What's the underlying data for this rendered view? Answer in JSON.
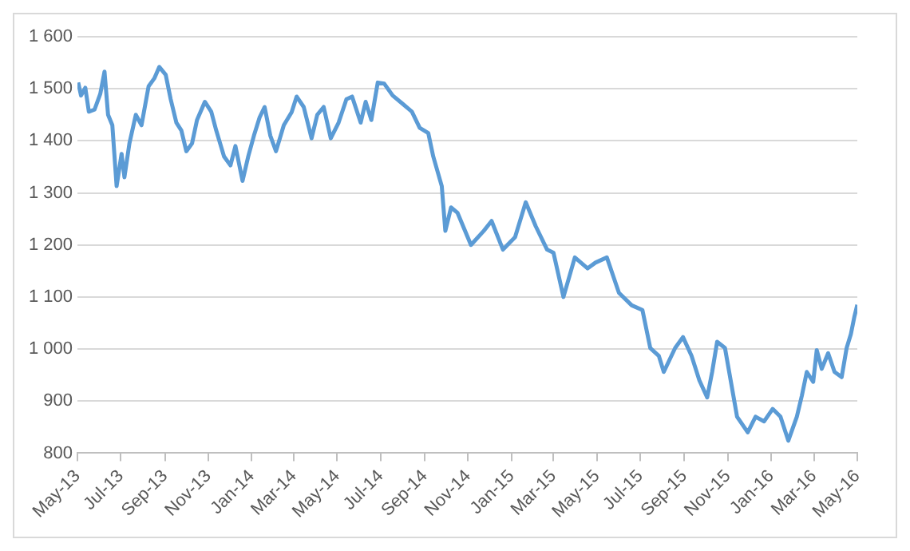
{
  "chart_data": {
    "type": "line",
    "xlim": [
      "2013-05",
      "2016-05"
    ],
    "xticks": [
      {
        "value": "2013-05",
        "label": "May-13"
      },
      {
        "value": "2013-07",
        "label": "Jul-13"
      },
      {
        "value": "2013-09",
        "label": "Sep-13"
      },
      {
        "value": "2013-11",
        "label": "Nov-13"
      },
      {
        "value": "2014-01",
        "label": "Jan-14"
      },
      {
        "value": "2014-03",
        "label": "Mar-14"
      },
      {
        "value": "2014-05",
        "label": "May-14"
      },
      {
        "value": "2014-07",
        "label": "Jul-14"
      },
      {
        "value": "2014-09",
        "label": "Sep-14"
      },
      {
        "value": "2014-11",
        "label": "Nov-14"
      },
      {
        "value": "2015-01",
        "label": "Jan-15"
      },
      {
        "value": "2015-03",
        "label": "Mar-15"
      },
      {
        "value": "2015-05",
        "label": "May-15"
      },
      {
        "value": "2015-07",
        "label": "Jul-15"
      },
      {
        "value": "2015-09",
        "label": "Sep-15"
      },
      {
        "value": "2015-11",
        "label": "Nov-15"
      },
      {
        "value": "2016-01",
        "label": "Jan-16"
      },
      {
        "value": "2016-03",
        "label": "Mar-16"
      },
      {
        "value": "2016-05",
        "label": "May-16"
      }
    ],
    "ylim": [
      800,
      1600
    ],
    "yticks": [
      {
        "value": 800,
        "label": "800"
      },
      {
        "value": 900,
        "label": "900"
      },
      {
        "value": 1000,
        "label": "1 000"
      },
      {
        "value": 1100,
        "label": "1 100"
      },
      {
        "value": 1200,
        "label": "1 200"
      },
      {
        "value": 1300,
        "label": "1 300"
      },
      {
        "value": 1400,
        "label": "1 400"
      },
      {
        "value": 1500,
        "label": "1 500"
      },
      {
        "value": 1600,
        "label": "1 600"
      }
    ],
    "grid": "y",
    "legend": false,
    "marker": "none",
    "line_style": "solid",
    "series": [
      {
        "color": "#5b9bd5",
        "x": [
          "2013-05-02",
          "2013-05-06",
          "2013-05-12",
          "2013-05-17",
          "2013-05-25",
          "2013-06-02",
          "2013-06-08",
          "2013-06-13",
          "2013-06-19",
          "2013-06-25",
          "2013-07-02",
          "2013-07-06",
          "2013-07-13",
          "2013-07-22",
          "2013-07-30",
          "2013-08-09",
          "2013-08-17",
          "2013-08-24",
          "2013-09-02",
          "2013-09-09",
          "2013-09-17",
          "2013-09-24",
          "2013-10-01",
          "2013-10-09",
          "2013-10-16",
          "2013-10-27",
          "2013-11-05",
          "2013-11-12",
          "2013-11-23",
          "2013-12-02",
          "2013-12-09",
          "2013-12-19",
          "2013-12-27",
          "2014-01-04",
          "2014-01-12",
          "2014-01-19",
          "2014-01-27",
          "2014-02-04",
          "2014-02-15",
          "2014-02-26",
          "2014-03-05",
          "2014-03-15",
          "2014-03-26",
          "2014-04-03",
          "2014-04-12",
          "2014-04-22",
          "2014-05-03",
          "2014-05-14",
          "2014-05-22",
          "2014-06-03",
          "2014-06-10",
          "2014-06-18",
          "2014-06-27",
          "2014-07-06",
          "2014-07-18",
          "2014-08-02",
          "2014-08-14",
          "2014-08-25",
          "2014-09-06",
          "2014-09-13",
          "2014-09-25",
          "2014-09-30",
          "2014-10-08",
          "2014-10-17",
          "2014-11-05",
          "2014-11-23",
          "2014-12-04",
          "2014-12-20",
          "2015-01-06",
          "2015-01-21",
          "2015-02-04",
          "2015-02-20",
          "2015-03-01",
          "2015-03-15",
          "2015-03-31",
          "2015-04-18",
          "2015-04-29",
          "2015-05-15",
          "2015-06-01",
          "2015-06-19",
          "2015-07-04",
          "2015-07-15",
          "2015-07-27",
          "2015-08-03",
          "2015-08-19",
          "2015-08-30",
          "2015-09-11",
          "2015-09-22",
          "2015-10-03",
          "2015-10-10",
          "2015-10-17",
          "2015-10-28",
          "2015-11-14",
          "2015-11-29",
          "2015-12-10",
          "2015-12-22",
          "2016-01-03",
          "2016-01-14",
          "2016-01-25",
          "2016-02-06",
          "2016-02-13",
          "2016-02-20",
          "2016-02-29",
          "2016-03-05",
          "2016-03-12",
          "2016-03-21",
          "2016-03-30",
          "2016-04-09",
          "2016-04-16",
          "2016-04-22",
          "2016-04-27",
          "2016-05-01"
        ],
        "values": [
          1512,
          1487,
          1502,
          1456,
          1460,
          1490,
          1533,
          1450,
          1430,
          1313,
          1375,
          1330,
          1395,
          1450,
          1430,
          1505,
          1520,
          1542,
          1527,
          1480,
          1435,
          1420,
          1380,
          1395,
          1440,
          1475,
          1456,
          1420,
          1370,
          1353,
          1390,
          1323,
          1370,
          1410,
          1445,
          1465,
          1410,
          1380,
          1430,
          1455,
          1485,
          1465,
          1405,
          1450,
          1465,
          1405,
          1435,
          1480,
          1485,
          1435,
          1475,
          1440,
          1512,
          1510,
          1487,
          1470,
          1456,
          1425,
          1415,
          1370,
          1313,
          1227,
          1272,
          1262,
          1200,
          1227,
          1246,
          1191,
          1215,
          1282,
          1236,
          1191,
          1185,
          1100,
          1176,
          1155,
          1166,
          1176,
          1108,
          1084,
          1075,
          1002,
          987,
          956,
          1002,
          1023,
          987,
          940,
          907,
          956,
          1014,
          1002,
          870,
          840,
          870,
          861,
          885,
          870,
          824,
          870,
          910,
          956,
          937,
          998,
          962,
          992,
          956,
          946,
          1002,
          1029,
          1063,
          1085
        ]
      }
    ]
  }
}
